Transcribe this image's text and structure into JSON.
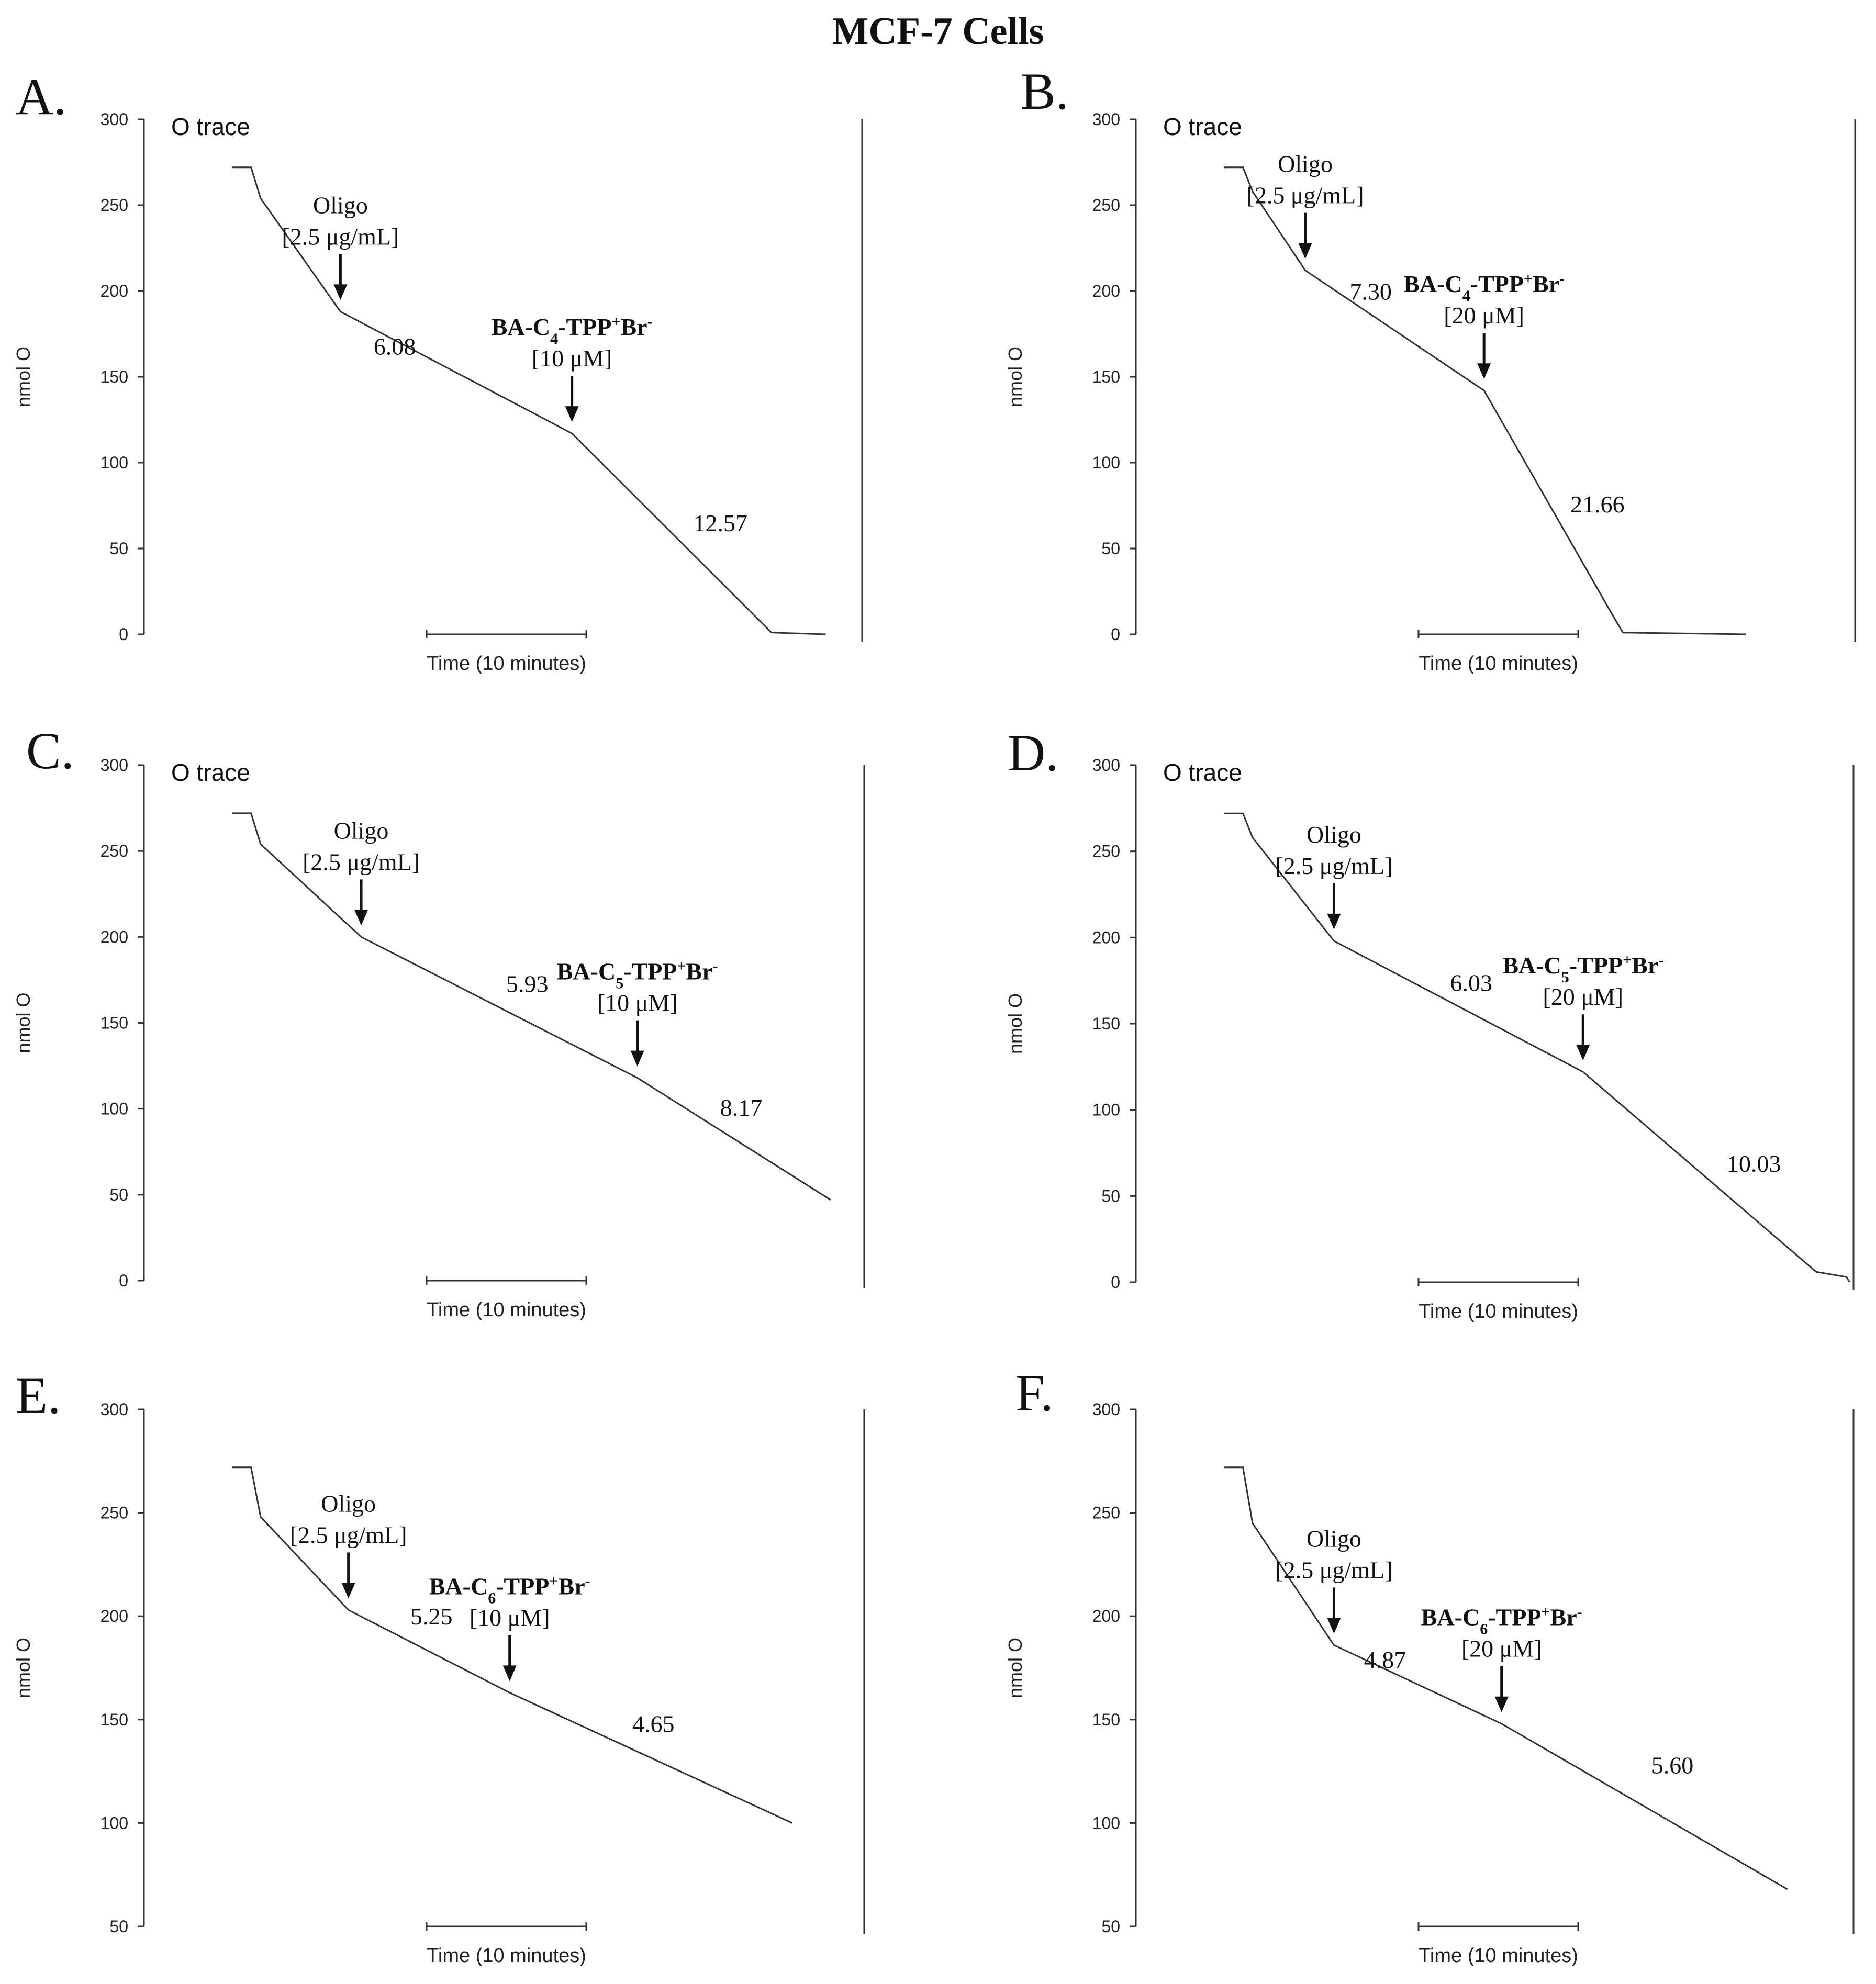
{
  "figure_title": "MCF-7 Cells",
  "chart_data": [
    {
      "type": "line",
      "panel": "A.",
      "series_label": "O trace",
      "ylabel": "nmol O",
      "xlabel": "Time (10 minutes)",
      "ylim": [
        0,
        300
      ],
      "yticks": [
        0,
        50,
        100,
        150,
        200,
        250,
        300
      ],
      "x_units": "minutes",
      "scale_bar_minutes": 10,
      "trace": [
        [
          0,
          272
        ],
        [
          1.2,
          272
        ],
        [
          1.8,
          254
        ],
        [
          6.8,
          188
        ],
        [
          21.3,
          117
        ],
        [
          33.8,
          1
        ],
        [
          37.2,
          0
        ]
      ],
      "additions": [
        {
          "label": "Oligo",
          "dose": "[2.5 μg/mL]",
          "time": 6.8
        },
        {
          "compound_html": "BA-C<tspan baseline-shift=\"sub\" font-size=\"30\">4</tspan>-TPP<tspan baseline-shift=\"super\" font-size=\"30\">+</tspan>Br<tspan baseline-shift=\"super\" font-size=\"30\">-</tspan>",
          "dose": "[10 μM]",
          "time": 21.3
        }
      ],
      "rates": [
        {
          "value": "6.08",
          "x": 10.2,
          "y": 163
        },
        {
          "value": "12.57",
          "x": 30.6,
          "y": 60
        }
      ]
    },
    {
      "type": "line",
      "panel": "B.",
      "series_label": "O trace",
      "ylabel": "nmol O",
      "xlabel": "Time (10 minutes)",
      "ylim": [
        0,
        300
      ],
      "yticks": [
        0,
        50,
        100,
        150,
        200,
        250,
        300
      ],
      "x_units": "minutes",
      "scale_bar_minutes": 10,
      "trace": [
        [
          0,
          272
        ],
        [
          1.2,
          272
        ],
        [
          1.8,
          258
        ],
        [
          5.1,
          212
        ],
        [
          16.3,
          142
        ],
        [
          24.3,
          12
        ],
        [
          25.0,
          1
        ],
        [
          32.7,
          0
        ]
      ],
      "additions": [
        {
          "label": "Oligo",
          "dose": "[2.5 μg/mL]",
          "time": 5.1
        },
        {
          "compound_html": "BA-C<tspan baseline-shift=\"sub\" font-size=\"30\">4</tspan>-TPP<tspan baseline-shift=\"super\" font-size=\"30\">+</tspan>Br<tspan baseline-shift=\"super\" font-size=\"30\">-</tspan>",
          "dose": "[20 μM]",
          "time": 16.3
        }
      ],
      "rates": [
        {
          "value": "7.30",
          "x": 9.2,
          "y": 195
        },
        {
          "value": "21.66",
          "x": 23.4,
          "y": 71
        }
      ]
    },
    {
      "type": "line",
      "panel": "C.",
      "series_label": "O trace",
      "ylabel": "nmol O",
      "xlabel": "Time (10 minutes)",
      "ylim": [
        0,
        300
      ],
      "yticks": [
        0,
        50,
        100,
        150,
        200,
        250,
        300
      ],
      "x_units": "minutes",
      "scale_bar_minutes": 10,
      "trace": [
        [
          0,
          272
        ],
        [
          1.2,
          272
        ],
        [
          1.8,
          254
        ],
        [
          8.1,
          200
        ],
        [
          25.4,
          118
        ],
        [
          37.5,
          47
        ]
      ],
      "additions": [
        {
          "label": "Oligo",
          "dose": "[2.5 μg/mL]",
          "time": 8.1
        },
        {
          "compound_html": "BA-C<tspan baseline-shift=\"sub\" font-size=\"30\">5</tspan>-TPP<tspan baseline-shift=\"super\" font-size=\"30\">+</tspan>Br<tspan baseline-shift=\"super\" font-size=\"30\">-</tspan>",
          "dose": "[10 μM]",
          "time": 25.4
        }
      ],
      "rates": [
        {
          "value": "5.93",
          "x": 18.5,
          "y": 168
        },
        {
          "value": "8.17",
          "x": 31.9,
          "y": 96
        }
      ]
    },
    {
      "type": "line",
      "panel": "D.",
      "series_label": "O trace",
      "ylabel": "nmol O",
      "xlabel": "Time (10 minutes)",
      "ylim": [
        0,
        300
      ],
      "yticks": [
        0,
        50,
        100,
        150,
        200,
        250,
        300
      ],
      "x_units": "minutes",
      "scale_bar_minutes": 10,
      "trace": [
        [
          0,
          272
        ],
        [
          1.2,
          272
        ],
        [
          1.8,
          258
        ],
        [
          6.9,
          198
        ],
        [
          22.5,
          122
        ],
        [
          37.1,
          6
        ],
        [
          39.0,
          3
        ],
        [
          39.2,
          0
        ]
      ],
      "additions": [
        {
          "label": "Oligo",
          "dose": "[2.5 μg/mL]",
          "time": 6.9
        },
        {
          "compound_html": "BA-C<tspan baseline-shift=\"sub\" font-size=\"30\">5</tspan>-TPP<tspan baseline-shift=\"super\" font-size=\"30\">+</tspan>Br<tspan baseline-shift=\"super\" font-size=\"30\">-</tspan>",
          "dose": "[20 μM]",
          "time": 22.5
        }
      ],
      "rates": [
        {
          "value": "6.03",
          "x": 15.5,
          "y": 169
        },
        {
          "value": "10.03",
          "x": 33.2,
          "y": 64
        }
      ]
    },
    {
      "type": "line",
      "panel": "E.",
      "series_label": "",
      "ylabel": "nmol O",
      "xlabel": "Time (10 minutes)",
      "ylim": [
        50,
        300
      ],
      "yticks": [
        50,
        100,
        150,
        200,
        250,
        300
      ],
      "x_units": "minutes",
      "scale_bar_minutes": 10,
      "trace": [
        [
          0,
          272
        ],
        [
          1.2,
          272
        ],
        [
          1.8,
          248
        ],
        [
          7.3,
          203
        ],
        [
          17.4,
          163
        ],
        [
          35.1,
          100
        ]
      ],
      "additions": [
        {
          "label": "Oligo",
          "dose": "[2.5 μg/mL]",
          "time": 7.3
        },
        {
          "compound_html": "BA-C<tspan baseline-shift=\"sub\" font-size=\"30\">6</tspan>-TPP<tspan baseline-shift=\"super\" font-size=\"30\">+</tspan>Br<tspan baseline-shift=\"super\" font-size=\"30\">-</tspan>",
          "dose": "[10 μM]",
          "time": 17.4
        }
      ],
      "rates": [
        {
          "value": "5.25",
          "x": 12.5,
          "y": 196
        },
        {
          "value": "4.65",
          "x": 26.4,
          "y": 144
        }
      ]
    },
    {
      "type": "line",
      "panel": "F.",
      "series_label": "",
      "ylabel": "nmol O",
      "xlabel": "Time (10 minutes)",
      "ylim": [
        50,
        300
      ],
      "yticks": [
        50,
        100,
        150,
        200,
        250,
        300
      ],
      "x_units": "minutes",
      "scale_bar_minutes": 10,
      "trace": [
        [
          0,
          272
        ],
        [
          1.2,
          272
        ],
        [
          1.8,
          245
        ],
        [
          6.9,
          186
        ],
        [
          17.4,
          148
        ],
        [
          35.3,
          68
        ]
      ],
      "additions": [
        {
          "label": "Oligo",
          "dose": "[2.5 μg/mL]",
          "time": 6.9
        },
        {
          "compound_html": "BA-C<tspan baseline-shift=\"sub\" font-size=\"30\">6</tspan>-TPP<tspan baseline-shift=\"super\" font-size=\"30\">+</tspan>Br<tspan baseline-shift=\"super\" font-size=\"30\">-</tspan>",
          "dose": "[20 μM]",
          "time": 17.4
        }
      ],
      "rates": [
        {
          "value": "4.87",
          "x": 10.1,
          "y": 175
        },
        {
          "value": "5.60",
          "x": 28.1,
          "y": 124
        }
      ]
    }
  ]
}
